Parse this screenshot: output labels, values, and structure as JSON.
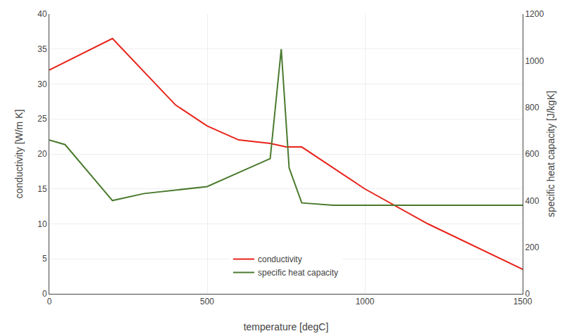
{
  "chart_data": {
    "type": "line",
    "xlabel": "temperature [degC]",
    "ylabel": "conductivity [W/m K]",
    "y2label": "specific heat capacity [J/kgK]",
    "xlim": [
      0,
      1500
    ],
    "xticks": [
      0,
      500,
      1000,
      1500
    ],
    "ylim": [
      0,
      40
    ],
    "yticks": [
      0,
      5,
      10,
      15,
      20,
      25,
      30,
      35,
      40
    ],
    "y2lim": [
      0,
      1200
    ],
    "y2ticks": [
      0,
      200,
      400,
      600,
      800,
      1000,
      1200
    ],
    "grid": true,
    "legend": "lower center",
    "series": [
      {
        "name": "conductivity",
        "color": "#e8231a",
        "x": [
          0,
          200,
          400,
          500,
          600,
          700,
          750,
          800,
          1000,
          1200,
          1500
        ],
        "values": [
          32,
          36.5,
          27,
          24,
          22,
          21.5,
          21,
          21,
          15,
          10,
          3.5
        ]
      },
      {
        "name": "specific heat capacity",
        "color": "#4a7a2e",
        "axis": "y2",
        "x": [
          0,
          50,
          200,
          300,
          500,
          600,
          700,
          735,
          760,
          800,
          900,
          1000,
          1100,
          1200,
          1500
        ],
        "values": [
          660,
          640,
          400,
          430,
          460,
          520,
          580,
          1050,
          540,
          390,
          380,
          380,
          380,
          380,
          380
        ]
      }
    ]
  }
}
